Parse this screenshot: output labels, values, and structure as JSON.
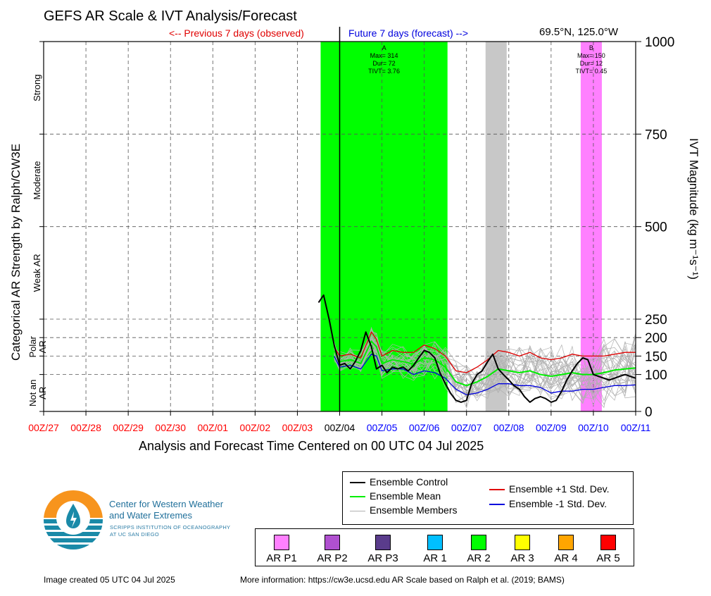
{
  "header": {
    "title": "GEFS AR Scale & IVT Analysis/Forecast",
    "prev_label": "<-- Previous 7 days (observed)",
    "future_label": "Future 7 days (forecast) -->",
    "location": "69.5°N, 125.0°W"
  },
  "chart_data": {
    "type": "line",
    "xlabel": "Analysis and Forecast Time Centered on 00 UTC 04 Jul 2025",
    "ylabel_left": "Categorical AR Strength by Ralph/CW3E",
    "ylabel_right": "IVT Magnitude (kg m⁻¹s⁻¹)",
    "ylim": [
      0,
      1000
    ],
    "yticks": [
      0,
      100,
      150,
      200,
      250,
      500,
      750,
      1000
    ],
    "x_range_days": [
      0,
      14
    ],
    "xticks": [
      {
        "label": "00Z/27",
        "day": 0,
        "color": "#ff0000"
      },
      {
        "label": "00Z/28",
        "day": 1,
        "color": "#ff0000"
      },
      {
        "label": "00Z/29",
        "day": 2,
        "color": "#ff0000"
      },
      {
        "label": "00Z/30",
        "day": 3,
        "color": "#ff0000"
      },
      {
        "label": "00Z/01",
        "day": 4,
        "color": "#ff0000"
      },
      {
        "label": "00Z/02",
        "day": 5,
        "color": "#ff0000"
      },
      {
        "label": "00Z/03",
        "day": 6,
        "color": "#ff0000"
      },
      {
        "label": "00Z/04",
        "day": 7,
        "color": "#000000"
      },
      {
        "label": "00Z/05",
        "day": 8,
        "color": "#0000ff"
      },
      {
        "label": "00Z/06",
        "day": 9,
        "color": "#0000ff"
      },
      {
        "label": "00Z/07",
        "day": 10,
        "color": "#0000ff"
      },
      {
        "label": "00Z/08",
        "day": 11,
        "color": "#0000ff"
      },
      {
        "label": "00Z/09",
        "day": 12,
        "color": "#0000ff"
      },
      {
        "label": "00Z/10",
        "day": 13,
        "color": "#0000ff"
      },
      {
        "label": "00Z/11",
        "day": 14,
        "color": "#0000ff"
      }
    ],
    "categories_left": [
      {
        "label": "Not an AR",
        "from": 0,
        "to": 100
      },
      {
        "label": "Polar AR",
        "from": 100,
        "to": 250
      },
      {
        "label": "Weak AR",
        "from": 250,
        "to": 500
      },
      {
        "label": "Moderate",
        "from": 500,
        "to": 750
      },
      {
        "label": "Strong",
        "from": 750,
        "to": 1000
      }
    ],
    "shaded_periods": [
      {
        "start_day": 6.55,
        "end_day": 9.55,
        "color": "#00ff00"
      },
      {
        "start_day": 10.45,
        "end_day": 10.95,
        "color": "#c8c8c8"
      },
      {
        "start_day": 12.7,
        "end_day": 13.2,
        "color": "#ff80ff"
      }
    ],
    "annotations": [
      {
        "day": 8.05,
        "lines": [
          "A",
          "Max= 314",
          "Dur= 72",
          "TIVT= 3.76"
        ]
      },
      {
        "day": 12.95,
        "lines": [
          "B",
          "Max= 150",
          "Dur= 12",
          "TIVT= 0.45"
        ]
      }
    ],
    "now_day": 7,
    "series": [
      {
        "name": "Ensemble Control",
        "color": "#000000",
        "x": [
          6.5,
          6.62,
          6.75,
          6.87,
          7.0,
          7.12,
          7.25,
          7.37,
          7.5,
          7.62,
          7.75,
          7.87,
          8.0,
          8.12,
          8.25,
          8.37,
          8.5,
          8.62,
          8.75,
          8.87,
          9.0,
          9.12,
          9.25,
          9.37,
          9.5,
          9.62,
          9.75,
          9.87,
          10.0,
          10.12,
          10.25,
          10.37,
          10.5,
          10.62,
          10.75,
          10.87,
          11.0,
          11.12,
          11.25,
          11.37,
          11.5,
          11.62,
          11.75,
          11.87,
          12.0,
          12.12,
          12.25,
          12.37,
          12.5,
          12.62,
          12.75,
          12.87,
          13.0,
          13.12,
          13.25,
          13.37,
          13.5,
          13.62,
          13.75,
          13.87,
          14.0
        ],
        "y": [
          295,
          315,
          250,
          180,
          125,
          130,
          115,
          135,
          165,
          215,
          175,
          115,
          125,
          105,
          120,
          115,
          120,
          110,
          125,
          145,
          165,
          160,
          145,
          105,
          75,
          50,
          30,
          25,
          30,
          75,
          100,
          110,
          135,
          155,
          115,
          100,
          85,
          70,
          60,
          40,
          25,
          35,
          40,
          35,
          25,
          30,
          55,
          85,
          110,
          130,
          145,
          140,
          100,
          95,
          90,
          85,
          90,
          95,
          100,
          95,
          90
        ]
      },
      {
        "name": "Ensemble Mean",
        "color": "#00ee00",
        "x": [
          6.87,
          7.0,
          7.25,
          7.5,
          7.75,
          7.87,
          8.0,
          8.25,
          8.5,
          8.75,
          9.0,
          9.25,
          9.5,
          9.75,
          10.0,
          10.25,
          10.5,
          10.75,
          11.0,
          11.25,
          11.5,
          11.75,
          12.0,
          12.25,
          12.5,
          12.75,
          13.0,
          13.25,
          13.5,
          13.75,
          14.0
        ],
        "y": [
          165,
          135,
          140,
          130,
          190,
          175,
          130,
          140,
          135,
          128,
          145,
          140,
          120,
          80,
          70,
          80,
          95,
          115,
          110,
          105,
          110,
          100,
          95,
          100,
          105,
          100,
          100,
          105,
          112,
          115,
          118
        ]
      },
      {
        "name": "Ensemble +1 Std. Dev.",
        "color": "#e00000",
        "x": [
          6.87,
          7.0,
          7.25,
          7.5,
          7.75,
          7.87,
          8.0,
          8.25,
          8.5,
          8.75,
          9.0,
          9.25,
          9.5,
          9.75,
          10.0,
          10.25,
          10.5,
          10.75,
          11.0,
          11.25,
          11.5,
          11.75,
          12.0,
          12.25,
          12.5,
          12.75,
          13.0,
          13.25,
          13.5,
          13.75,
          14.0
        ],
        "y": [
          175,
          150,
          155,
          145,
          215,
          195,
          150,
          165,
          160,
          160,
          180,
          170,
          150,
          110,
          105,
          120,
          140,
          165,
          160,
          150,
          160,
          145,
          140,
          145,
          155,
          150,
          150,
          150,
          155,
          160,
          160
        ]
      },
      {
        "name": "Ensemble -1 Std. Dev.",
        "color": "#0000dd",
        "x": [
          6.87,
          7.0,
          7.25,
          7.5,
          7.75,
          7.87,
          8.0,
          8.25,
          8.5,
          8.75,
          9.0,
          9.25,
          9.5,
          9.75,
          10.0,
          10.25,
          10.5,
          10.75,
          11.0,
          11.25,
          11.5,
          11.75,
          12.0,
          12.25,
          12.5,
          12.75,
          13.0,
          13.25,
          13.5,
          13.75,
          14.0
        ],
        "y": [
          150,
          120,
          125,
          115,
          155,
          150,
          110,
          115,
          115,
          100,
          110,
          105,
          90,
          60,
          45,
          50,
          60,
          75,
          75,
          70,
          70,
          65,
          50,
          55,
          55,
          60,
          60,
          65,
          70,
          70,
          72
        ]
      }
    ],
    "ensemble_members": {
      "name": "Ensemble Members",
      "color": "#b0b0b0",
      "count": 30
    }
  },
  "legend": {
    "items": [
      {
        "label": "Ensemble Control",
        "color": "#000000"
      },
      {
        "label": "Ensemble Mean",
        "color": "#00ee00"
      },
      {
        "label": "Ensemble Members",
        "color": "#b0b0b0"
      },
      {
        "label": "Ensemble +1 Std. Dev.",
        "color": "#e00000"
      },
      {
        "label": "Ensemble -1 Std. Dev.",
        "color": "#0000dd"
      }
    ]
  },
  "ar_legend": [
    {
      "label": "AR P1",
      "color": "#ff80ff"
    },
    {
      "label": "AR P2",
      "color": "#b050d0"
    },
    {
      "label": "AR P3",
      "color": "#5a3c8c"
    },
    {
      "label": "AR 1",
      "color": "#00bfff"
    },
    {
      "label": "AR 2",
      "color": "#00ff00"
    },
    {
      "label": "AR 3",
      "color": "#ffff00"
    },
    {
      "label": "AR 4",
      "color": "#ffa500"
    },
    {
      "label": "AR 5",
      "color": "#ff0000"
    }
  ],
  "logo": {
    "org_line1": "Center for Western Weather",
    "org_line2": "and Water Extremes",
    "org_line3": "SCRIPPS INSTITUTION OF OCEANOGRAPHY",
    "org_line4": "AT UC SAN DIEGO"
  },
  "footer": {
    "created": "Image created 05 UTC 04 Jul 2025",
    "more_info": "More information: https://cw3e.ucsd.edu AR Scale based on Ralph et al. (2019; BAMS)"
  }
}
